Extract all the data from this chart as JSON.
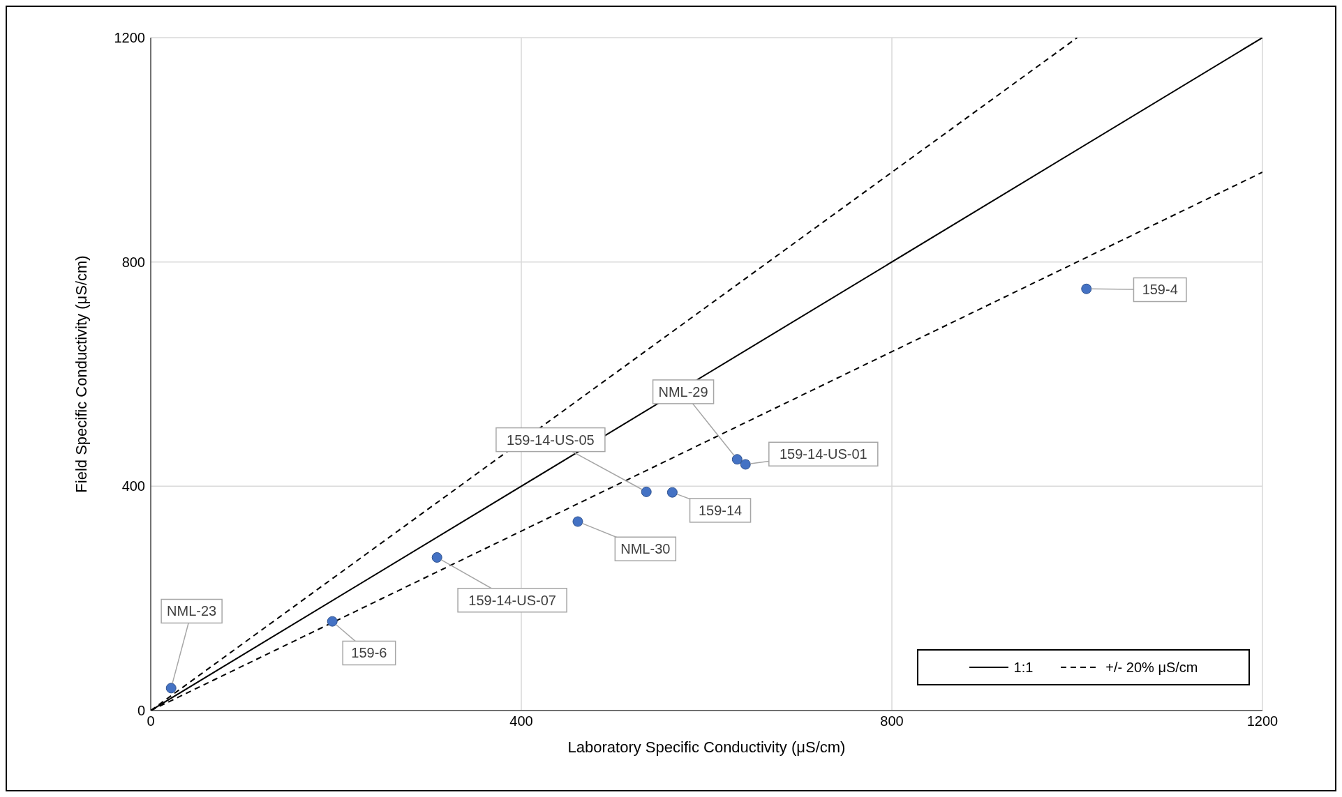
{
  "chart_data": {
    "type": "scatter",
    "xlabel": "Laboratory Specific Conductivity (μS/cm)",
    "ylabel": "Field Specific Conductivity (μS/cm)",
    "xlim": [
      0,
      1200
    ],
    "ylim": [
      0,
      1200
    ],
    "xticks": [
      0,
      400,
      800,
      1200
    ],
    "yticks": [
      0,
      400,
      800,
      1200
    ],
    "grid": true,
    "legend": "bottom right",
    "series": [
      {
        "color": "#4472c4",
        "marker": "circle",
        "x": [
          22,
          196,
          309,
          461,
          535,
          563,
          633,
          642,
          1010
        ],
        "values": [
          40,
          159,
          273,
          337,
          390,
          389,
          448,
          439,
          752
        ]
      },
      {
        "type": "line",
        "name": "1:1",
        "color": "#000000",
        "line_style": "solid",
        "x": [
          0,
          1200
        ],
        "values": [
          0,
          1200
        ]
      },
      {
        "type": "line",
        "name": "+/- 20% μS/cm",
        "color": "#000000",
        "line_style": "dashed",
        "x": [
          0,
          1000
        ],
        "values": [
          0,
          1200
        ]
      },
      {
        "type": "line",
        "color": "#000000",
        "line_style": "dashed",
        "x": [
          0,
          1200
        ],
        "values": [
          0,
          960
        ]
      }
    ],
    "annotations": [
      {
        "text": "NML-23",
        "x": 22,
        "y": 40
      },
      {
        "text": "159-6",
        "x": 196,
        "y": 159
      },
      {
        "text": "159-14-US-07",
        "x": 309,
        "y": 273
      },
      {
        "text": "NML-30",
        "x": 461,
        "y": 337
      },
      {
        "text": "159-14-US-05",
        "x": 535,
        "y": 390
      },
      {
        "text": "159-14",
        "x": 563,
        "y": 389
      },
      {
        "text": "NML-29",
        "x": 633,
        "y": 448
      },
      {
        "text": "159-14-US-01",
        "x": 642,
        "y": 439
      },
      {
        "text": "159-4",
        "x": 1010,
        "y": 752
      }
    ]
  }
}
